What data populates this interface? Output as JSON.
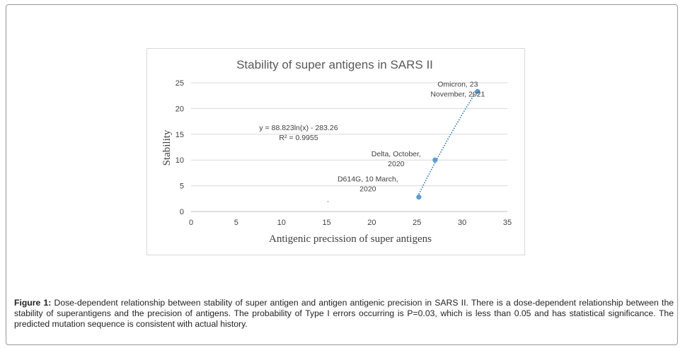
{
  "chart_data": {
    "type": "scatter",
    "title": "Stability of super antigens in SARS II",
    "xlabel": "Antigenic precission of super antigens",
    "ylabel": "Stability",
    "xlim": [
      0,
      35
    ],
    "ylim": [
      0,
      25
    ],
    "x_ticks": [
      "0",
      "5",
      "10",
      "15",
      "20",
      "25",
      "30",
      "35"
    ],
    "y_ticks": [
      "0",
      "5",
      "10",
      "15",
      "20",
      "25"
    ],
    "grid": true,
    "points": [
      {
        "x": 25.2,
        "y": 2.8,
        "label_lines": [
          "D614G, 10 March,",
          "2020"
        ]
      },
      {
        "x": 27.0,
        "y": 10.0,
        "label_lines": [
          "Delta, October,",
          "2020"
        ]
      },
      {
        "x": 31.7,
        "y": 23.3,
        "label_lines": [
          "Omicron, 23",
          "November, 2021"
        ]
      }
    ],
    "trendline": {
      "type": "log",
      "a": 88.823,
      "b": -283.26,
      "x_range": [
        25.2,
        31.7
      ],
      "equation": "y = 88.823ln(x) - 283.26",
      "r2": "R² = 0.9955"
    },
    "colors": {
      "points": "#5b9bd5",
      "trendline": "#2e75b6",
      "grid": "#d9d9d9",
      "title": "#595959"
    }
  },
  "caption": {
    "label": "Figure 1:",
    "text": " Dose-dependent relationship between stability of super antigen and antigen antigenic precision in SARS II.  There is a dose-dependent relationship between the stability of superantigens and the precision of antigens. The probability of Type I errors occurring is P=0.03, which is less than 0.05 and has statistical significance. The predicted mutation sequence is consistent with actual history."
  }
}
